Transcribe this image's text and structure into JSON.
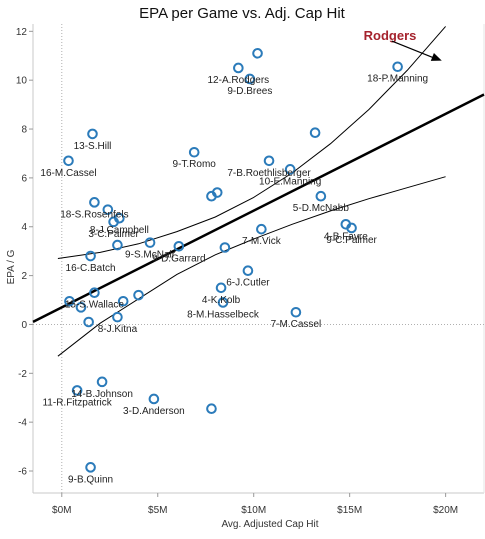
{
  "chart_data": {
    "type": "scatter",
    "title": "EPA per Game vs. Adj. Cap Hit",
    "xlabel": "Avg. Adjusted Cap Hit",
    "ylabel": "EPA / G",
    "xlim": [
      -1.5,
      22
    ],
    "ylim": [
      -6.9,
      12.3
    ],
    "x_ticks": [
      {
        "v": 0,
        "label": "$0M"
      },
      {
        "v": 5,
        "label": "$5M"
      },
      {
        "v": 10,
        "label": "$10M"
      },
      {
        "v": 15,
        "label": "$15M"
      },
      {
        "v": 20,
        "label": "$20M"
      }
    ],
    "y_ticks": [
      -6,
      -4,
      -2,
      0,
      2,
      4,
      6,
      8,
      10,
      12
    ],
    "grid": false,
    "marker_color": "#2b7bba",
    "trend": {
      "line": {
        "intercept": 0.7,
        "slope": 0.396
      },
      "upper_band": [
        [
          -0.2,
          2.7
        ],
        [
          2,
          2.95
        ],
        [
          4,
          3.3
        ],
        [
          6,
          3.8
        ],
        [
          8,
          4.4
        ],
        [
          10,
          5.2
        ],
        [
          12,
          6.2
        ],
        [
          14,
          7.4
        ],
        [
          16,
          8.8
        ],
        [
          18,
          10.4
        ],
        [
          20,
          12.2
        ]
      ],
      "lower_band": [
        [
          -0.2,
          -1.3
        ],
        [
          2,
          0.05
        ],
        [
          4,
          1.05
        ],
        [
          6,
          2.05
        ],
        [
          8,
          2.85
        ],
        [
          10,
          3.5
        ],
        [
          12,
          4.1
        ],
        [
          14,
          4.65
        ],
        [
          16,
          5.15
        ],
        [
          18,
          5.6
        ],
        [
          20,
          6.05
        ]
      ]
    },
    "points": [
      {
        "x": 10.2,
        "y": 11.1,
        "label": ""
      },
      {
        "x": 9.2,
        "y": 10.5,
        "label": "12-A.Rodgers"
      },
      {
        "x": 9.8,
        "y": 10.05,
        "label": "9-D.Brees"
      },
      {
        "x": 17.5,
        "y": 10.55,
        "label": "18-P.Manning"
      },
      {
        "x": 1.6,
        "y": 7.8,
        "label": "13-S.Hill"
      },
      {
        "x": 6.9,
        "y": 7.05,
        "label": "9-T.Romo"
      },
      {
        "x": 13.2,
        "y": 7.85,
        "label": ""
      },
      {
        "x": 10.8,
        "y": 6.7,
        "label": "7-B.Roethlisberger"
      },
      {
        "x": 11.9,
        "y": 6.35,
        "label": "10-E.Manning"
      },
      {
        "x": 0.35,
        "y": 6.7,
        "label": "16-M.Cassel"
      },
      {
        "x": 1.7,
        "y": 5.0,
        "label": "18-S.Rosenfels"
      },
      {
        "x": 7.8,
        "y": 5.25,
        "label": ""
      },
      {
        "x": 8.1,
        "y": 5.4,
        "label": ""
      },
      {
        "x": 2.4,
        "y": 4.7,
        "label": ""
      },
      {
        "x": 2.7,
        "y": 4.2,
        "label": "3-C.Palmer"
      },
      {
        "x": 3.0,
        "y": 4.35,
        "label": "8-J.Campbell"
      },
      {
        "x": 13.5,
        "y": 5.25,
        "label": "5-D.McNabb"
      },
      {
        "x": 14.8,
        "y": 4.1,
        "label": "4-B.Favre"
      },
      {
        "x": 15.1,
        "y": 3.95,
        "label": "9-C.Palmer"
      },
      {
        "x": 10.4,
        "y": 3.9,
        "label": "7-M.Vick"
      },
      {
        "x": 4.6,
        "y": 3.35,
        "label": "9-S.McNair"
      },
      {
        "x": 2.9,
        "y": 3.25,
        "label": ""
      },
      {
        "x": 6.1,
        "y": 3.2,
        "label": "9-D.Garrard"
      },
      {
        "x": 8.5,
        "y": 3.15,
        "label": ""
      },
      {
        "x": 1.5,
        "y": 2.8,
        "label": "16-C.Batch"
      },
      {
        "x": 9.7,
        "y": 2.2,
        "label": "6-J.Cutler"
      },
      {
        "x": 8.3,
        "y": 1.5,
        "label": "4-K.Kolb"
      },
      {
        "x": 1.7,
        "y": 1.3,
        "label": "15-S.Wallace"
      },
      {
        "x": 4.0,
        "y": 1.2,
        "label": ""
      },
      {
        "x": 0.4,
        "y": 0.95,
        "label": ""
      },
      {
        "x": 3.2,
        "y": 0.95,
        "label": ""
      },
      {
        "x": 1.0,
        "y": 0.7,
        "label": ""
      },
      {
        "x": 8.4,
        "y": 0.9,
        "label": "8-M.Hasselbeck"
      },
      {
        "x": 12.2,
        "y": 0.5,
        "label": "7-M.Cassel"
      },
      {
        "x": 1.4,
        "y": 0.1,
        "label": ""
      },
      {
        "x": 2.9,
        "y": 0.3,
        "label": "8-J.Kitna"
      },
      {
        "x": 2.1,
        "y": -2.35,
        "label": "14-B.Johnson"
      },
      {
        "x": 0.8,
        "y": -2.7,
        "label": "11-R.Fitzpatrick"
      },
      {
        "x": 4.8,
        "y": -3.05,
        "label": "3-D.Anderson"
      },
      {
        "x": 7.8,
        "y": -3.45,
        "label": ""
      },
      {
        "x": 1.5,
        "y": -5.85,
        "label": "9-B.Quinn"
      }
    ],
    "annotation": {
      "text": "Rodgers",
      "arrow_from": [
        17.2,
        11.6
      ],
      "arrow_to": [
        19.8,
        10.8
      ]
    }
  }
}
